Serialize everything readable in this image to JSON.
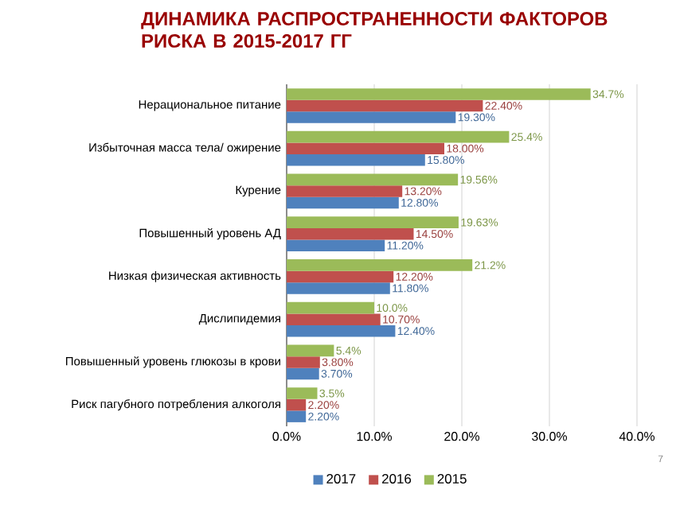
{
  "chart_data": {
    "type": "bar",
    "orientation": "horizontal",
    "title": "ДИНАМИКА РАСПРОСТРАНЕННОСТИ ФАКТОРОВ РИСКА В 2015-2017 ГГ",
    "categories": [
      "Нерациональное питание",
      "Избыточная масса тела/ ожирение",
      "Курение",
      "Повышенный уровень АД",
      "Низкая физическая активность",
      "Дислипидемия",
      "Повышенный уровень глюкозы в крови",
      "Риск пагубного потребления алкоголя"
    ],
    "series": [
      {
        "name": "2017",
        "color": "#4f81bd",
        "values": [
          19.3,
          15.8,
          12.8,
          11.2,
          11.8,
          12.4,
          3.7,
          2.2
        ],
        "value_labels": [
          "19.30%",
          "15.80%",
          "12.80%",
          "11.20%",
          "11.80%",
          "12.40%",
          "3.70%",
          "2.20%"
        ]
      },
      {
        "name": "2016",
        "color": "#c0504d",
        "values": [
          22.4,
          18.0,
          13.2,
          14.5,
          12.2,
          10.7,
          3.8,
          2.2
        ],
        "value_labels": [
          "22.40%",
          "18.00%",
          "13.20%",
          "14.50%",
          "12.20%",
          "10.70%",
          "3.80%",
          "2.20%"
        ]
      },
      {
        "name": "2015",
        "color": "#9bbb59",
        "values": [
          34.7,
          25.4,
          19.56,
          19.63,
          21.2,
          10.0,
          5.4,
          3.5
        ],
        "value_labels": [
          "34.7%",
          "25.4%",
          "19.56%",
          "19.63%",
          "21.2%",
          "10.0%",
          "5.4%",
          "3.5%"
        ]
      }
    ],
    "xlim": [
      0,
      40
    ],
    "xticks": [
      {
        "value": 0,
        "label": "0.0%"
      },
      {
        "value": 10,
        "label": "10.0%"
      },
      {
        "value": 20,
        "label": "20.0%"
      },
      {
        "value": 30,
        "label": "30.0%"
      },
      {
        "value": 40,
        "label": "40.0%"
      }
    ],
    "grid": "x",
    "legend": "bottom",
    "annotations": [
      "7"
    ]
  }
}
